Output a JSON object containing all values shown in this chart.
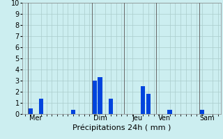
{
  "title": "",
  "xlabel": "Précipitations 24h ( mm )",
  "ylabel": "",
  "background_color": "#cceef0",
  "bar_color": "#0044dd",
  "ylim": [
    0,
    10
  ],
  "yticks": [
    0,
    1,
    2,
    3,
    4,
    5,
    6,
    7,
    8,
    9,
    10
  ],
  "grid_color": "#aacccc",
  "day_labels": [
    "Mer",
    "Dim",
    "Jeu",
    "Ven",
    "Sam"
  ],
  "day_tick_positions": [
    2,
    14,
    21,
    26,
    34
  ],
  "day_line_positions": [
    0.5,
    12.5,
    18.5,
    24.5,
    32.5
  ],
  "bar_values": [
    0.5,
    1.4,
    0.4,
    3.0,
    3.3,
    1.4,
    2.5,
    1.8,
    0.4,
    0.4
  ],
  "bar_positions": [
    1,
    3,
    9,
    13,
    14,
    16,
    22,
    23,
    27,
    33
  ],
  "bar_width": 0.85,
  "xlim": [
    -0.5,
    36.5
  ],
  "xlabel_fontsize": 8,
  "tick_fontsize": 7
}
